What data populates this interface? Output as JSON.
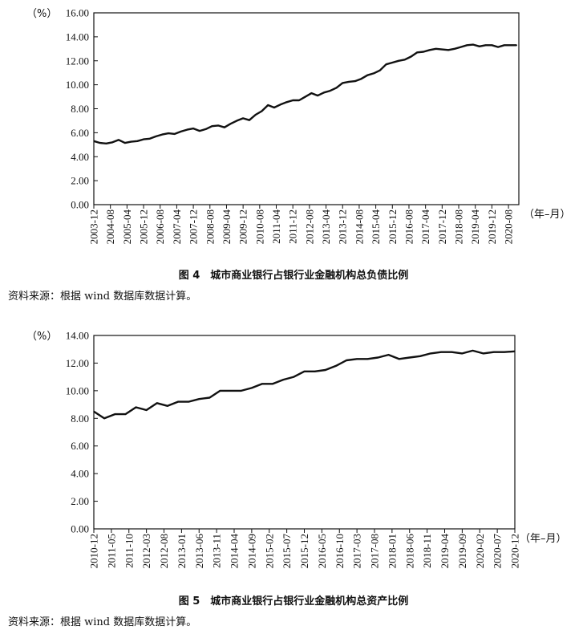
{
  "figures": [
    {
      "caption": "图 4　城市商业银行占银行业金融机构总负债比例",
      "source": "资料来源：根据 wind 数据库数据计算。"
    },
    {
      "caption": "图 5　城市商业银行占银行业金融机构总资产比例",
      "source": "资料来源：根据 wind 数据库数据计算。"
    }
  ],
  "chart_data": [
    {
      "type": "line",
      "title": "图 4　城市商业银行占银行业金融机构总负债比例",
      "ylabel": "（%）",
      "xlabel": "（年–月）",
      "ylim": [
        0,
        16
      ],
      "yticks": [
        "0.00",
        "2.00",
        "4.00",
        "6.00",
        "8.00",
        "10.00",
        "12.00",
        "14.00",
        "16.00"
      ],
      "x_tick_labels": [
        "2003-12",
        "2004-08",
        "2005-04",
        "2005-12",
        "2006-08",
        "2007-04",
        "2007-12",
        "2008-08",
        "2009-04",
        "2009-12",
        "2010-08",
        "2011-04",
        "2011-12",
        "2012-08",
        "2013-04",
        "2013-12",
        "2014-08",
        "2015-04",
        "2015-12",
        "2016-08",
        "2017-04",
        "2017-12",
        "2018-08",
        "2019-04",
        "2019-12",
        "2020-08"
      ],
      "grid": false,
      "series": [
        {
          "x": [
            "2003-12",
            "2004-03",
            "2004-06",
            "2004-09",
            "2004-12",
            "2005-03",
            "2005-06",
            "2005-09",
            "2005-12",
            "2006-03",
            "2006-06",
            "2006-09",
            "2006-12",
            "2007-03",
            "2007-06",
            "2007-09",
            "2007-12",
            "2008-03",
            "2008-06",
            "2008-09",
            "2008-12",
            "2009-03",
            "2009-06",
            "2009-09",
            "2009-12",
            "2010-03",
            "2010-06",
            "2010-09",
            "2010-12",
            "2011-03",
            "2011-06",
            "2011-09",
            "2011-12",
            "2012-03",
            "2012-06",
            "2012-09",
            "2012-12",
            "2013-03",
            "2013-06",
            "2013-09",
            "2013-12",
            "2014-03",
            "2014-06",
            "2014-09",
            "2014-12",
            "2015-03",
            "2015-06",
            "2015-09",
            "2015-12",
            "2016-03",
            "2016-06",
            "2016-09",
            "2016-12",
            "2017-03",
            "2017-06",
            "2017-09",
            "2017-12",
            "2018-03",
            "2018-06",
            "2018-09",
            "2018-12",
            "2019-03",
            "2019-06",
            "2019-09",
            "2019-12",
            "2020-03",
            "2020-06",
            "2020-09",
            "2020-12"
          ],
          "values": [
            5.3,
            5.15,
            5.1,
            5.2,
            5.4,
            5.15,
            5.25,
            5.3,
            5.45,
            5.5,
            5.7,
            5.85,
            5.95,
            5.9,
            6.1,
            6.25,
            6.35,
            6.15,
            6.3,
            6.55,
            6.6,
            6.45,
            6.75,
            7.0,
            7.2,
            7.05,
            7.5,
            7.8,
            8.3,
            8.1,
            8.35,
            8.55,
            8.7,
            8.7,
            9.0,
            9.3,
            9.1,
            9.35,
            9.5,
            9.75,
            10.15,
            10.25,
            10.3,
            10.5,
            10.8,
            10.95,
            11.2,
            11.7,
            11.85,
            12.0,
            12.1,
            12.35,
            12.7,
            12.75,
            12.9,
            13.0,
            12.95,
            12.9,
            13.0,
            13.15,
            13.3,
            13.35,
            13.2,
            13.3,
            13.3,
            13.15,
            13.3,
            13.3,
            13.3
          ]
        }
      ]
    },
    {
      "type": "line",
      "title": "图 5　城市商业银行占银行业金融机构总资产比例",
      "ylabel": "（%）",
      "xlabel": "（年–月）",
      "ylim": [
        0,
        14
      ],
      "yticks": [
        "0.00",
        "2.00",
        "4.00",
        "6.00",
        "8.00",
        "10.00",
        "12.00",
        "14.00"
      ],
      "x_tick_labels": [
        "2010-12",
        "2011-05",
        "2011-10",
        "2012-03",
        "2012-08",
        "2013-01",
        "2013-06",
        "2013-11",
        "2014-04",
        "2014-09",
        "2015-02",
        "2015-07",
        "2015-12",
        "2016-05",
        "2016-10",
        "2017-03",
        "2017-08",
        "2018-01",
        "2018-06",
        "2018-11",
        "2019-04",
        "2019-09",
        "2020-02",
        "2020-07",
        "2020-12"
      ],
      "grid": false,
      "series": [
        {
          "x": [
            "2010-12",
            "2011-03",
            "2011-06",
            "2011-09",
            "2011-12",
            "2012-03",
            "2012-06",
            "2012-09",
            "2012-12",
            "2013-03",
            "2013-06",
            "2013-09",
            "2013-12",
            "2014-03",
            "2014-06",
            "2014-09",
            "2014-12",
            "2015-03",
            "2015-06",
            "2015-09",
            "2015-12",
            "2016-03",
            "2016-06",
            "2016-09",
            "2016-12",
            "2017-03",
            "2017-06",
            "2017-09",
            "2017-12",
            "2018-03",
            "2018-06",
            "2018-09",
            "2018-12",
            "2019-03",
            "2019-06",
            "2019-09",
            "2019-12",
            "2020-03",
            "2020-06",
            "2020-09",
            "2020-12"
          ],
          "values": [
            8.5,
            8.0,
            8.3,
            8.3,
            8.8,
            8.6,
            9.1,
            8.9,
            9.2,
            9.2,
            9.4,
            9.5,
            10.0,
            10.0,
            10.0,
            10.2,
            10.5,
            10.5,
            10.8,
            11.0,
            11.4,
            11.4,
            11.5,
            11.8,
            12.2,
            12.3,
            12.3,
            12.4,
            12.6,
            12.3,
            12.4,
            12.5,
            12.7,
            12.8,
            12.8,
            12.7,
            12.9,
            12.7,
            12.8,
            12.8,
            12.85
          ]
        }
      ]
    }
  ]
}
